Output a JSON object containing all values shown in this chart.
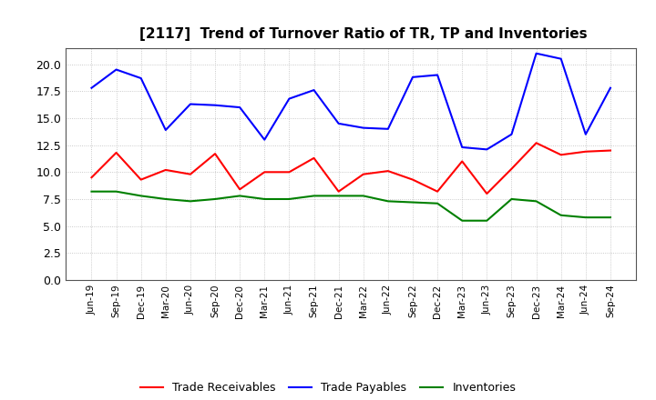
{
  "title": "[2117]  Trend of Turnover Ratio of TR, TP and Inventories",
  "labels": [
    "Jun-19",
    "Sep-19",
    "Dec-19",
    "Mar-20",
    "Jun-20",
    "Sep-20",
    "Dec-20",
    "Mar-21",
    "Jun-21",
    "Sep-21",
    "Dec-21",
    "Mar-22",
    "Jun-22",
    "Sep-22",
    "Dec-22",
    "Mar-23",
    "Jun-23",
    "Sep-23",
    "Dec-23",
    "Mar-24",
    "Jun-24",
    "Sep-24"
  ],
  "trade_receivables": [
    9.5,
    11.8,
    9.3,
    10.2,
    9.8,
    11.7,
    8.4,
    10.0,
    10.0,
    11.3,
    8.2,
    9.8,
    10.1,
    9.3,
    8.2,
    11.0,
    8.0,
    10.3,
    12.7,
    11.6,
    11.9,
    12.0
  ],
  "trade_payables": [
    17.8,
    19.5,
    18.7,
    13.9,
    16.3,
    16.2,
    16.0,
    13.0,
    16.8,
    17.6,
    14.5,
    14.1,
    14.0,
    18.8,
    19.0,
    12.3,
    12.1,
    13.5,
    21.0,
    20.5,
    13.5,
    17.8
  ],
  "inventories": [
    8.2,
    8.2,
    7.8,
    7.5,
    7.3,
    7.5,
    7.8,
    7.5,
    7.5,
    7.8,
    7.8,
    7.8,
    7.3,
    7.2,
    7.1,
    5.5,
    5.5,
    7.5,
    7.3,
    6.0,
    5.8,
    5.8
  ],
  "tr_color": "#ff0000",
  "tp_color": "#0000ff",
  "inv_color": "#008000",
  "ylim": [
    0.0,
    21.5
  ],
  "yticks": [
    0.0,
    2.5,
    5.0,
    7.5,
    10.0,
    12.5,
    15.0,
    17.5,
    20.0
  ],
  "legend_labels": [
    "Trade Receivables",
    "Trade Payables",
    "Inventories"
  ],
  "background_color": "#ffffff",
  "grid_color": "#bbbbbb"
}
